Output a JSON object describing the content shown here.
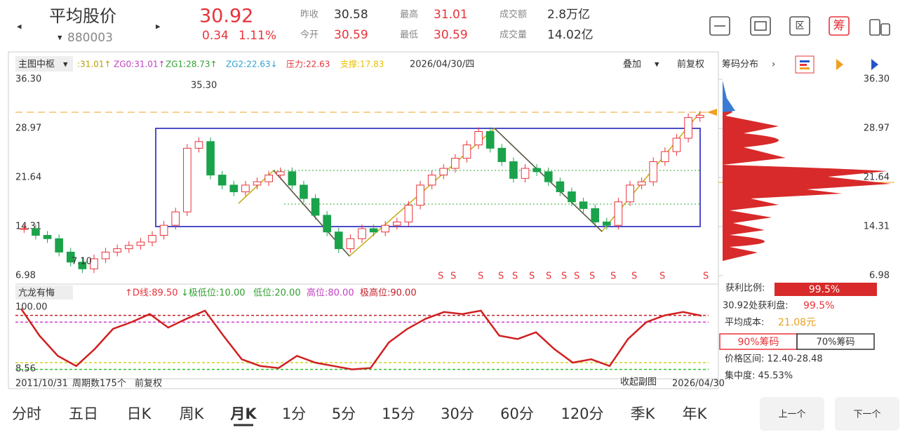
{
  "header": {
    "title": "平均股价",
    "code": "880003",
    "price": "30.92",
    "change": "0.34",
    "change_pct": "1.11%",
    "stats": [
      [
        "昨收",
        "30.58"
      ],
      [
        "今开",
        "30.59"
      ],
      [
        "最高",
        "31.01"
      ],
      [
        "最低",
        "30.59"
      ],
      [
        "成交额",
        "2.8万亿"
      ],
      [
        "成交量",
        "14.02亿"
      ]
    ],
    "icons": [
      "区",
      "筹"
    ]
  },
  "indicator_bar": {
    "name": "主图中枢",
    "items": [
      ":31.01↑",
      "ZG0:31.01↑",
      "ZG1:28.73↑",
      "ZG2:22.63↓",
      "压力:22.63",
      "支撑:17.83"
    ],
    "date": "2026/04/30/四",
    "overlay": "叠加",
    "adjust": "前复权",
    "chips": "筹码分布"
  },
  "main_chart": {
    "ylim": [
      6.98,
      36.3
    ],
    "yticks": [
      {
        "value": 36.3,
        "label": "36.30"
      },
      28.97,
      21.64,
      14.31,
      6.98
    ],
    "high_label": "35.30",
    "low_label": "7.10",
    "closes": [
      14.0,
      13.0,
      12.5,
      10.5,
      9.0,
      8.0,
      9.5,
      10.5,
      11.0,
      11.5,
      12.0,
      13.0,
      14.5,
      16.5,
      26.0,
      27.0,
      22.0,
      20.5,
      19.5,
      20.5,
      21.0,
      22.0,
      22.5,
      20.5,
      18.5,
      16.0,
      13.5,
      11.0,
      12.5,
      14.0,
      13.5,
      14.5,
      15.0,
      17.5,
      20.5,
      22.0,
      23.0,
      24.5,
      26.5,
      28.5,
      26.0,
      24.0,
      21.5,
      23.0,
      22.5,
      21.0,
      19.5,
      18.0,
      17.0,
      15.0,
      14.5,
      18.0,
      20.5,
      21.0,
      24.0,
      25.5,
      27.5,
      30.58,
      30.92
    ],
    "signals": [
      "S",
      "S",
      "S",
      "S",
      "S",
      "S",
      "S",
      "S",
      "S",
      "S",
      "S",
      "S",
      "S",
      "S"
    ]
  },
  "sub_chart": {
    "name": "亢龙有悔",
    "items": [
      "↑D线:89.50",
      "↓极低位:10.00",
      "低位:20.00",
      "高位:80.00",
      "极高位:90.00"
    ],
    "ylim": [
      8.56,
      100
    ],
    "yticks": [
      {
        "value": 100,
        "label": "100.00"
      },
      8.56
    ],
    "levels": [
      90,
      80,
      20,
      10
    ],
    "d_line": [
      100,
      60,
      30,
      15,
      40,
      70,
      80,
      92,
      72,
      85,
      97,
      60,
      25,
      15,
      12,
      30,
      20,
      15,
      10,
      12,
      50,
      70,
      85,
      95,
      92,
      97,
      60,
      55,
      65,
      40,
      20,
      25,
      15,
      55,
      80,
      90,
      95,
      89.5
    ]
  },
  "time_axis": {
    "start": "2011/10/31",
    "periods": "周期数175个",
    "adjust": "前复权",
    "collapse": "收起副图",
    "end": "2026/04/30"
  },
  "chip_panel": {
    "profit_ratio_label": "获利比例:",
    "profit_ratio": "99.5%",
    "profit_at": "30.92处获利盘:",
    "profit_at_value": "99.5%",
    "avg_cost_label": "平均成本:",
    "avg_cost": "21.08元",
    "tab90": "90%筹码",
    "tab70": "70%筹码",
    "range": "价格区间: 12.40-28.48",
    "concentration": "集中度: 45.53%"
  },
  "tabs": [
    "分时",
    "五日",
    "日K",
    "周K",
    "月K",
    "1分",
    "5分",
    "15分",
    "30分",
    "60分",
    "120分",
    "季K",
    "年K"
  ],
  "buttons": [
    "上一个",
    "下一个"
  ]
}
